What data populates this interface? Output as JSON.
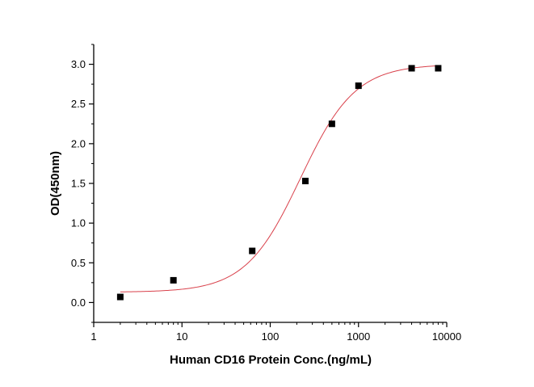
{
  "chart_data": {
    "type": "scatter",
    "title": "",
    "xlabel": "Human CD16 Protein Conc.(ng/mL)",
    "ylabel": "OD(450nm)",
    "xscale": "log",
    "xlim": [
      1,
      10000
    ],
    "ylim": [
      -0.25,
      3.25
    ],
    "xticks": [
      "1",
      "10",
      "100",
      "1000",
      "10000"
    ],
    "yticks": [
      "0.0",
      "0.5",
      "1.0",
      "1.5",
      "2.0",
      "2.5",
      "3.0"
    ],
    "grid": false,
    "points": {
      "x": [
        2,
        8,
        62.5,
        250,
        500,
        1000,
        4000,
        8000
      ],
      "y": [
        0.07,
        0.28,
        0.65,
        1.53,
        2.25,
        2.73,
        2.95,
        2.95
      ],
      "marker": "square",
      "color": "#000000"
    },
    "fit": {
      "model": "4-parameter logistic",
      "bottom": 0.13,
      "top": 3.0,
      "ec50": 220,
      "hill": 1.4,
      "color": "#d9414b"
    }
  }
}
